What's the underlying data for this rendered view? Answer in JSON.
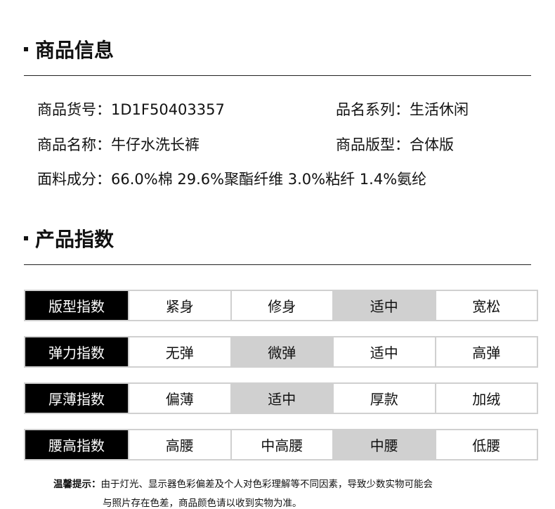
{
  "section1": {
    "title": "商品信息"
  },
  "info": [
    {
      "label": "商品货号：",
      "value": "1D1F50403357"
    },
    {
      "label": "品名系列：",
      "value": "生活休闲"
    },
    {
      "label": "商品名称：",
      "value": "牛仔水洗长裤"
    },
    {
      "label": "商品版型：",
      "value": "合体版"
    },
    {
      "label": "面料成分：",
      "value": "66.0%棉 29.6%聚酯纤维 3.0%粘纤 1.4%氨纶"
    }
  ],
  "section2": {
    "title": "产品指数"
  },
  "indices": [
    {
      "label": "版型指数",
      "options": [
        "紧身",
        "修身",
        "适中",
        "宽松"
      ],
      "selected": 2
    },
    {
      "label": "弹力指数",
      "options": [
        "无弹",
        "微弹",
        "适中",
        "高弹"
      ],
      "selected": 1
    },
    {
      "label": "厚薄指数",
      "options": [
        "偏薄",
        "适中",
        "厚款",
        "加绒"
      ],
      "selected": 1
    },
    {
      "label": "腰高指数",
      "options": [
        "高腰",
        "中高腰",
        "中腰",
        "低腰"
      ],
      "selected": 2
    }
  ],
  "notice": {
    "label": "温馨提示：",
    "line1": "由于灯光、显示器色彩偏差及个人对色彩理解等不同因素，导致少数实物可能会",
    "line2": "与照片存在色差，商品颜色请以收到实物为准。"
  },
  "colors": {
    "selected": "#d0d0d0",
    "label_bg": "#000000"
  }
}
